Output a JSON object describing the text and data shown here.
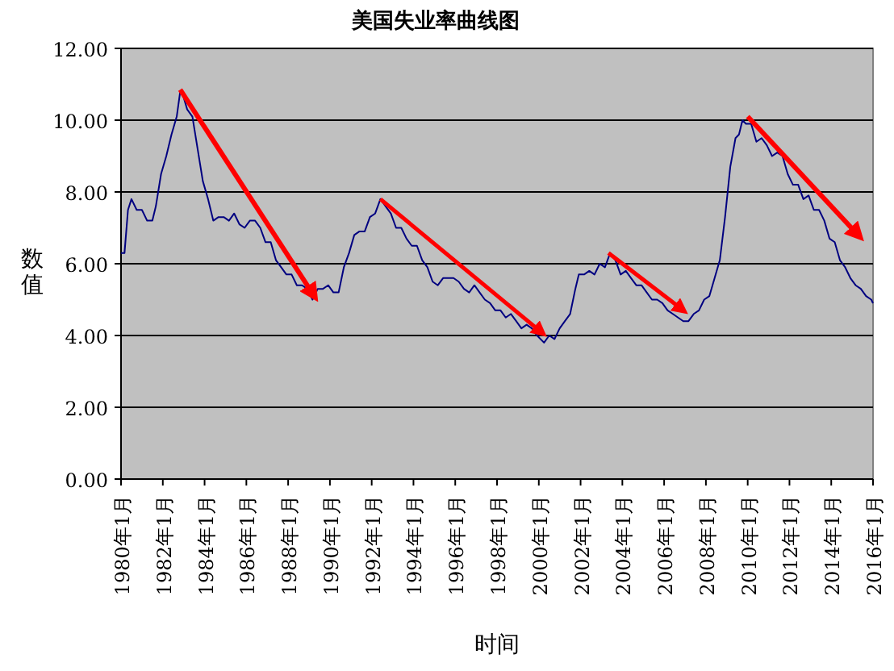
{
  "chart_data": {
    "type": "line",
    "title": "美国失业率曲线图",
    "xlabel": "时间",
    "ylabel": "数值",
    "x": [
      "1980-01",
      "1980-03",
      "1980-05",
      "1980-07",
      "1980-10",
      "1981-01",
      "1981-04",
      "1981-07",
      "1981-09",
      "1981-12",
      "1982-03",
      "1982-06",
      "1982-09",
      "1982-11",
      "1982-12",
      "1983-03",
      "1983-06",
      "1983-09",
      "1983-12",
      "1984-03",
      "1984-06",
      "1984-09",
      "1984-12",
      "1985-03",
      "1985-06",
      "1985-09",
      "1985-12",
      "1986-03",
      "1986-06",
      "1986-09",
      "1986-12",
      "1987-03",
      "1987-06",
      "1987-09",
      "1987-12",
      "1988-03",
      "1988-06",
      "1988-09",
      "1988-12",
      "1989-03",
      "1989-06",
      "1989-09",
      "1989-12",
      "1990-03",
      "1990-06",
      "1990-09",
      "1990-12",
      "1991-03",
      "1991-06",
      "1991-09",
      "1991-12",
      "1992-03",
      "1992-06",
      "1992-09",
      "1992-12",
      "1993-03",
      "1993-06",
      "1993-09",
      "1993-12",
      "1994-03",
      "1994-06",
      "1994-09",
      "1994-12",
      "1995-03",
      "1995-06",
      "1995-09",
      "1995-12",
      "1996-03",
      "1996-06",
      "1996-09",
      "1996-12",
      "1997-03",
      "1997-06",
      "1997-09",
      "1997-12",
      "1998-03",
      "1998-06",
      "1998-09",
      "1998-12",
      "1999-03",
      "1999-06",
      "1999-09",
      "1999-12",
      "2000-04",
      "2000-07",
      "2000-10",
      "2001-01",
      "2001-04",
      "2001-07",
      "2001-10",
      "2001-12",
      "2002-03",
      "2002-06",
      "2002-09",
      "2002-12",
      "2003-03",
      "2003-06",
      "2003-09",
      "2003-12",
      "2004-03",
      "2004-06",
      "2004-09",
      "2004-12",
      "2005-03",
      "2005-06",
      "2005-09",
      "2005-12",
      "2006-03",
      "2006-06",
      "2006-09",
      "2006-12",
      "2007-03",
      "2007-06",
      "2007-09",
      "2007-12",
      "2008-03",
      "2008-06",
      "2008-09",
      "2008-12",
      "2009-03",
      "2009-06",
      "2009-08",
      "2009-10",
      "2009-12",
      "2010-03",
      "2010-06",
      "2010-09",
      "2010-12",
      "2011-03",
      "2011-06",
      "2011-09",
      "2011-12",
      "2012-03",
      "2012-06",
      "2012-09",
      "2012-12",
      "2013-03",
      "2013-06",
      "2013-09",
      "2013-12",
      "2014-03",
      "2014-06",
      "2014-09",
      "2014-12",
      "2015-03",
      "2015-06",
      "2015-09",
      "2015-12",
      "2016-01"
    ],
    "series": [
      {
        "color": "#000080",
        "values": [
          6.3,
          6.3,
          7.5,
          7.8,
          7.5,
          7.5,
          7.2,
          7.2,
          7.6,
          8.5,
          9.0,
          9.6,
          10.1,
          10.8,
          10.8,
          10.3,
          10.1,
          9.2,
          8.3,
          7.8,
          7.2,
          7.3,
          7.3,
          7.2,
          7.4,
          7.1,
          7.0,
          7.2,
          7.2,
          7.0,
          6.6,
          6.6,
          6.1,
          5.9,
          5.7,
          5.7,
          5.4,
          5.4,
          5.3,
          5.0,
          5.3,
          5.3,
          5.4,
          5.2,
          5.2,
          5.9,
          6.3,
          6.8,
          6.9,
          6.9,
          7.3,
          7.4,
          7.8,
          7.6,
          7.4,
          7.0,
          7.0,
          6.7,
          6.5,
          6.5,
          6.1,
          5.9,
          5.5,
          5.4,
          5.6,
          5.6,
          5.6,
          5.5,
          5.3,
          5.2,
          5.4,
          5.2,
          5.0,
          4.9,
          4.7,
          4.7,
          4.5,
          4.6,
          4.4,
          4.2,
          4.3,
          4.2,
          4.0,
          3.8,
          4.0,
          3.9,
          4.2,
          4.4,
          4.6,
          5.3,
          5.7,
          5.7,
          5.8,
          5.7,
          6.0,
          5.9,
          6.3,
          6.1,
          5.7,
          5.8,
          5.6,
          5.4,
          5.4,
          5.2,
          5.0,
          5.0,
          4.9,
          4.7,
          4.6,
          4.5,
          4.4,
          4.4,
          4.6,
          4.7,
          5.0,
          5.1,
          5.6,
          6.1,
          7.3,
          8.7,
          9.5,
          9.6,
          10.0,
          9.9,
          9.9,
          9.4,
          9.5,
          9.3,
          9.0,
          9.1,
          9.0,
          8.5,
          8.2,
          8.2,
          7.8,
          7.9,
          7.5,
          7.5,
          7.2,
          6.7,
          6.6,
          6.1,
          5.9,
          5.6,
          5.4,
          5.3,
          5.1,
          5.0,
          4.9
        ]
      }
    ],
    "xlim": [
      "1980-01",
      "2016-01"
    ],
    "xticks": [
      {
        "value": "1980-01",
        "label": "1980年1月"
      },
      {
        "value": "1982-01",
        "label": "1982年1月"
      },
      {
        "value": "1984-01",
        "label": "1984年1月"
      },
      {
        "value": "1986-01",
        "label": "1986年1月"
      },
      {
        "value": "1988-01",
        "label": "1988年1月"
      },
      {
        "value": "1990-01",
        "label": "1990年1月"
      },
      {
        "value": "1992-01",
        "label": "1992年1月"
      },
      {
        "value": "1994-01",
        "label": "1994年1月"
      },
      {
        "value": "1996-01",
        "label": "1996年1月"
      },
      {
        "value": "1998-01",
        "label": "1998年1月"
      },
      {
        "value": "2000-01",
        "label": "2000年1月"
      },
      {
        "value": "2002-01",
        "label": "2002年1月"
      },
      {
        "value": "2004-01",
        "label": "2004年1月"
      },
      {
        "value": "2006-01",
        "label": "2006年1月"
      },
      {
        "value": "2008-01",
        "label": "2008年1月"
      },
      {
        "value": "2010-01",
        "label": "2010年1月"
      },
      {
        "value": "2012-01",
        "label": "2012年1月"
      },
      {
        "value": "2014-01",
        "label": "2014年1月"
      },
      {
        "value": "2016-01",
        "label": "2016年1月"
      }
    ],
    "ylim": [
      0,
      12
    ],
    "yticks": [
      {
        "value": 0,
        "label": "0.00"
      },
      {
        "value": 2,
        "label": "2.00"
      },
      {
        "value": 4,
        "label": "4.00"
      },
      {
        "value": 6,
        "label": "6.00"
      },
      {
        "value": 8,
        "label": "8.00"
      },
      {
        "value": 10,
        "label": "10.00"
      },
      {
        "value": 12,
        "label": "12.00"
      }
    ],
    "grid": "y",
    "marker": "none",
    "line_style": "solid"
  }
}
